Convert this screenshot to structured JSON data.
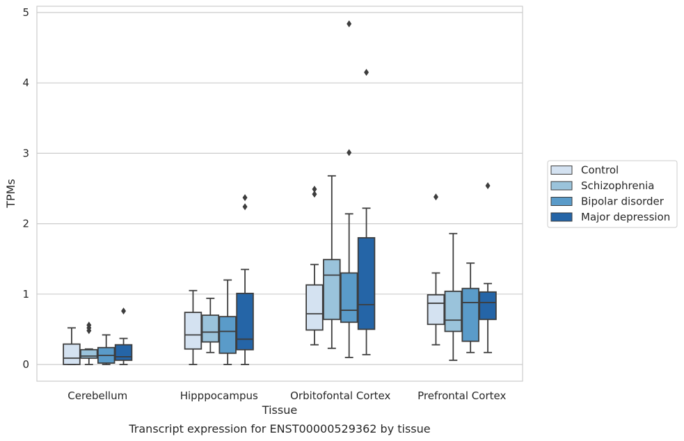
{
  "chart_data": {
    "type": "box",
    "caption": "Transcript expression for ENST00000529362 by tissue",
    "xlabel": "Tissue",
    "ylabel": "TPMs",
    "ylim": [
      -0.23,
      5.1
    ],
    "yticks": [
      0,
      1,
      2,
      3,
      4,
      5
    ],
    "grid": "horizontal",
    "legend_position": "right",
    "categories": [
      "Cerebellum",
      "Hipppocampus",
      "Orbitofontal Cortex",
      "Prefrontal Cortex"
    ],
    "series": [
      {
        "name": "Control",
        "color": "#d4e2f1",
        "boxes": [
          {
            "whisker_low": 0.0,
            "q1": 0.0,
            "median": 0.09,
            "q3": 0.29,
            "whisker_high": 0.52,
            "outliers": []
          },
          {
            "whisker_low": 0.0,
            "q1": 0.22,
            "median": 0.42,
            "q3": 0.74,
            "whisker_high": 1.05,
            "outliers": []
          },
          {
            "whisker_low": 0.28,
            "q1": 0.49,
            "median": 0.72,
            "q3": 1.13,
            "whisker_high": 1.42,
            "outliers": [
              2.42,
              2.49
            ]
          },
          {
            "whisker_low": 0.28,
            "q1": 0.57,
            "median": 0.87,
            "q3": 0.99,
            "whisker_high": 1.3,
            "outliers": [
              2.38
            ]
          }
        ]
      },
      {
        "name": "Schizophrenia",
        "color": "#9ac3db",
        "boxes": [
          {
            "whisker_low": 0.0,
            "q1": 0.09,
            "median": 0.12,
            "q3": 0.21,
            "whisker_high": 0.22,
            "outliers": [
              0.48,
              0.52,
              0.56
            ]
          },
          {
            "whisker_low": 0.17,
            "q1": 0.32,
            "median": 0.46,
            "q3": 0.7,
            "whisker_high": 0.94,
            "outliers": []
          },
          {
            "whisker_low": 0.23,
            "q1": 0.64,
            "median": 1.27,
            "q3": 1.49,
            "whisker_high": 2.68,
            "outliers": []
          },
          {
            "whisker_low": 0.06,
            "q1": 0.47,
            "median": 0.63,
            "q3": 1.04,
            "whisker_high": 1.86,
            "outliers": []
          }
        ]
      },
      {
        "name": "Bipolar disorder",
        "color": "#5a9bc9",
        "boxes": [
          {
            "whisker_low": 0.0,
            "q1": 0.02,
            "median": 0.13,
            "q3": 0.24,
            "whisker_high": 0.42,
            "outliers": []
          },
          {
            "whisker_low": 0.0,
            "q1": 0.16,
            "median": 0.47,
            "q3": 0.68,
            "whisker_high": 1.2,
            "outliers": []
          },
          {
            "whisker_low": 0.1,
            "q1": 0.6,
            "median": 0.77,
            "q3": 1.3,
            "whisker_high": 2.14,
            "outliers": [
              3.01,
              4.84
            ]
          },
          {
            "whisker_low": 0.17,
            "q1": 0.33,
            "median": 0.88,
            "q3": 1.08,
            "whisker_high": 1.44,
            "outliers": []
          }
        ]
      },
      {
        "name": "Major depression",
        "color": "#2565a7",
        "boxes": [
          {
            "whisker_low": 0.0,
            "q1": 0.06,
            "median": 0.11,
            "q3": 0.28,
            "whisker_high": 0.37,
            "outliers": [
              0.76
            ]
          },
          {
            "whisker_low": 0.0,
            "q1": 0.21,
            "median": 0.36,
            "q3": 1.01,
            "whisker_high": 1.35,
            "outliers": [
              2.24,
              2.37
            ]
          },
          {
            "whisker_low": 0.14,
            "q1": 0.5,
            "median": 0.85,
            "q3": 1.8,
            "whisker_high": 2.22,
            "outliers": [
              4.15
            ]
          },
          {
            "whisker_low": 0.17,
            "q1": 0.64,
            "median": 0.88,
            "q3": 1.03,
            "whisker_high": 1.15,
            "outliers": [
              2.54
            ]
          }
        ]
      }
    ]
  }
}
